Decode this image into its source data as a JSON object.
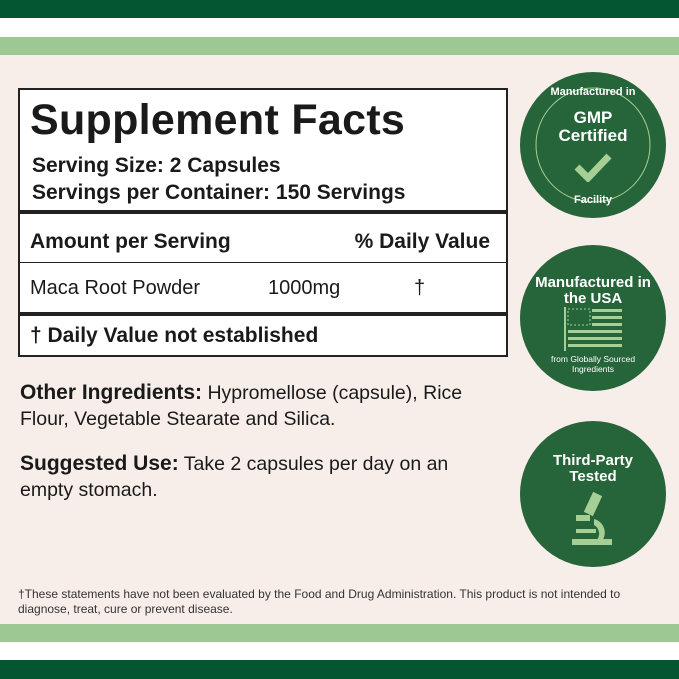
{
  "colors": {
    "dark_green": "#045630",
    "light_green": "#9dc793",
    "background": "#f7eeea",
    "badge_green": "#26643a",
    "badge_accent": "#a6cf95"
  },
  "facts": {
    "title": "Supplement Facts",
    "serving_size": "Serving Size: 2 Capsules",
    "servings_per_container": "Servings per Container: 150 Servings",
    "header_amount": "Amount per Serving",
    "header_dv": "% Daily Value",
    "ingredient": {
      "name": "Maca Root Powder",
      "amount": "1000mg",
      "dv": "†"
    },
    "footnote": "† Daily Value not established"
  },
  "other_ingredients": {
    "label": "Other Ingredients:",
    "text": " Hypromellose (capsule), Rice Flour, Vegetable Stearate and Silica."
  },
  "suggested_use": {
    "label": "Suggested Use:",
    "text": " Take 2 capsules per day on an empty stomach."
  },
  "disclaimer": "†These statements have not been evaluated by the Food and Drug Administration. This product is not intended to diagnose, treat, cure or prevent disease.",
  "badges": [
    {
      "top": "Manufactured in",
      "title": "GMP Certified",
      "bottom": "Facility",
      "icon": "checkmark-icon"
    },
    {
      "title": "Manufactured in the USA",
      "sub": "from Globally Sourced Ingredients",
      "icon": "us-flag-icon"
    },
    {
      "title": "Third-Party Tested",
      "icon": "microscope-icon"
    }
  ]
}
